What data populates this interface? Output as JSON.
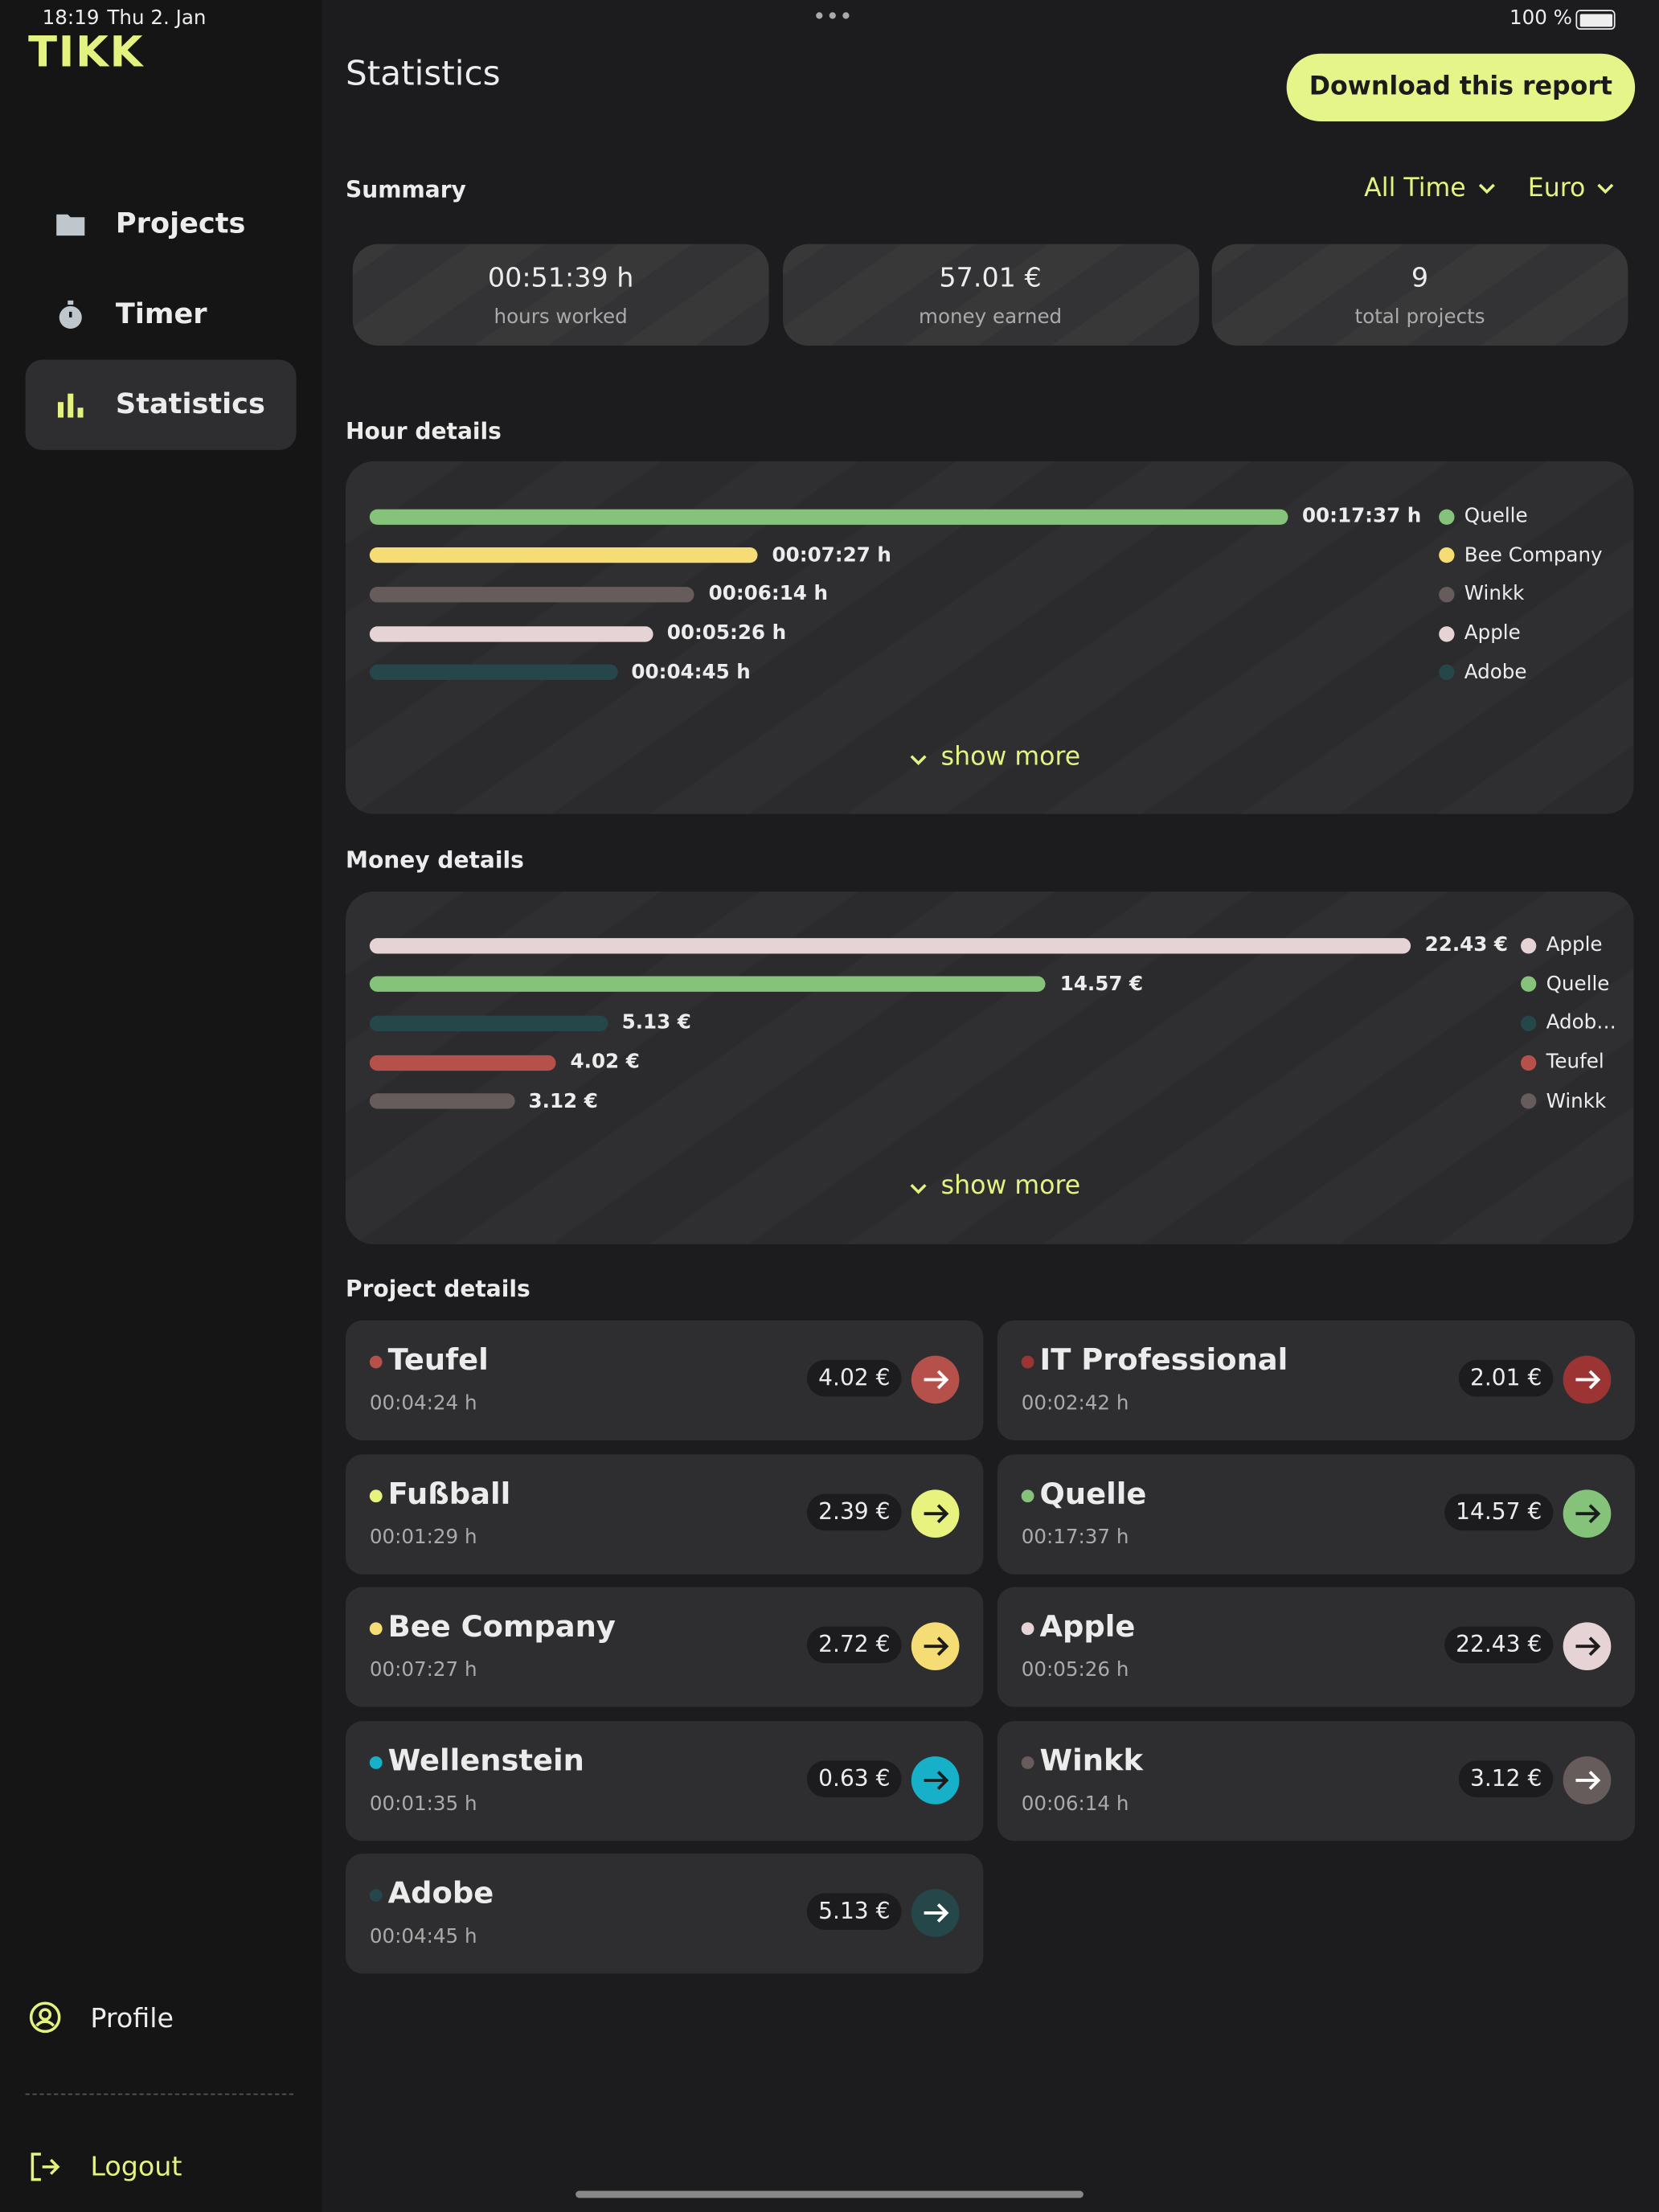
{
  "status_bar": {
    "time": "18:19",
    "date": "Thu 2. Jan",
    "battery": "100 %"
  },
  "sidebar": {
    "logo": "TIKK",
    "nav": [
      "Projects",
      "Timer",
      "Statistics"
    ],
    "active": 2,
    "profile": "Profile",
    "logout": "Logout"
  },
  "header": {
    "title": "Statistics",
    "button": "Download this report"
  },
  "summary": {
    "title": "Summary",
    "filters": [
      "All Time",
      "Euro"
    ],
    "cards": [
      {
        "value": "00:51:39 h",
        "label": "hours worked"
      },
      {
        "value": "57.01 €",
        "label": "money earned"
      },
      {
        "value": "9",
        "label": "total projects"
      }
    ]
  },
  "hour_details": {
    "type": "bar",
    "title": "Hour details",
    "categories": [
      "Quelle",
      "Bee Company",
      "Winkk",
      "Apple",
      "Adobe"
    ],
    "colors": [
      "#86c37a",
      "#f6dc74",
      "#675c5c",
      "#e6d3d5",
      "#25474a"
    ],
    "values": [
      1057,
      447,
      374,
      326,
      285
    ],
    "value_labels": [
      "00:17:37 h",
      "00:07:27 h",
      "00:06:14 h",
      "00:05:26 h",
      "00:04:45 h"
    ],
    "show_more": "show more"
  },
  "money_details": {
    "type": "bar",
    "title": "Money details",
    "categories": [
      "Apple",
      "Quelle",
      "Adob…",
      "Teufel",
      "Winkk"
    ],
    "colors": [
      "#e6d3d5",
      "#86c37a",
      "#25474a",
      "#b5504b",
      "#675c5c"
    ],
    "values": [
      22.43,
      14.57,
      5.13,
      4.02,
      3.12
    ],
    "value_labels": [
      "22.43 €",
      "14.57 €",
      "5.13 €",
      "4.02 €",
      "3.12 €"
    ],
    "show_more": "show more"
  },
  "project_details": {
    "title": "Project details",
    "projects": [
      {
        "name": "Teufel",
        "color": "#b5504b",
        "time": "00:04:24 h",
        "amount": "4.02 €"
      },
      {
        "name": "IT Professional",
        "color": "#9b3433",
        "time": "00:02:42 h",
        "amount": "2.01 €"
      },
      {
        "name": "Fußball",
        "color": "#e8f27e",
        "time": "00:01:29 h",
        "amount": "2.39 €"
      },
      {
        "name": "Quelle",
        "color": "#86c37a",
        "time": "00:17:37 h",
        "amount": "14.57 €"
      },
      {
        "name": "Bee Company",
        "color": "#f6dc74",
        "time": "00:07:27 h",
        "amount": "2.72 €"
      },
      {
        "name": "Apple",
        "color": "#e6d3d5",
        "time": "00:05:26 h",
        "amount": "22.43 €"
      },
      {
        "name": "Wellenstein",
        "color": "#16b1c9",
        "time": "00:01:35 h",
        "amount": "0.63 €"
      },
      {
        "name": "Winkk",
        "color": "#675c5c",
        "time": "00:06:14 h",
        "amount": "3.12 €"
      },
      {
        "name": "Adobe",
        "color": "#25474a",
        "time": "00:04:45 h",
        "amount": "5.13 €"
      }
    ]
  }
}
